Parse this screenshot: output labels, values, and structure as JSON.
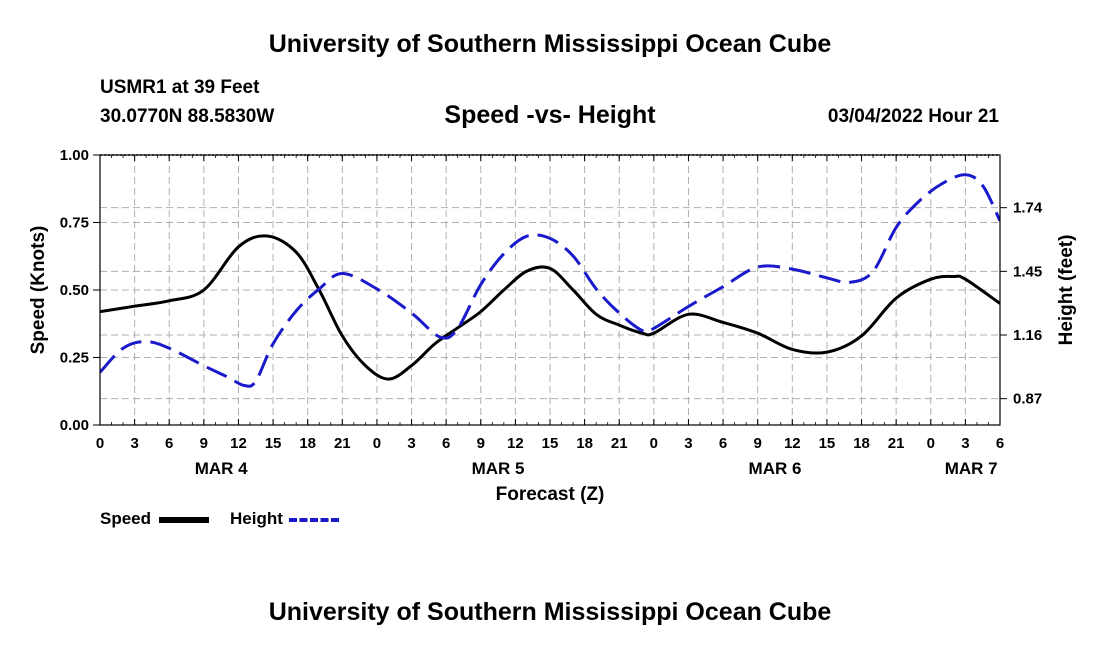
{
  "header": {
    "title": "University of Southern Mississippi Ocean Cube",
    "station": "USMR1 at 39 Feet",
    "coordinates": "30.0770N  88.5830W",
    "subtitle": "Speed -vs- Height",
    "datetime": "03/04/2022 Hour 21"
  },
  "footer": {
    "title": "University of Southern Mississippi Ocean Cube"
  },
  "legend": {
    "speed_label": "Speed",
    "height_label": "Height"
  },
  "colors": {
    "speed": "#000000",
    "height": "#1a1acc",
    "grid": "#b0b0b0"
  },
  "chart_data": {
    "type": "line",
    "title": "Speed -vs- Height",
    "xlabel": "Forecast (Z)",
    "ylabel": "Speed (Knots)",
    "y2label": "Height (feet)",
    "xlim": [
      0,
      78
    ],
    "ylim": [
      0,
      1.0
    ],
    "y2lim": [
      0.75,
      1.98
    ],
    "grid": true,
    "x_tick_values": [
      0,
      3,
      6,
      9,
      12,
      15,
      18,
      21,
      24,
      27,
      30,
      33,
      36,
      39,
      42,
      45,
      48,
      51,
      54,
      57,
      60,
      63,
      66,
      69,
      72,
      75,
      78
    ],
    "x_tick_labels": [
      "0",
      "3",
      "6",
      "9",
      "12",
      "15",
      "18",
      "21",
      "0",
      "3",
      "6",
      "9",
      "12",
      "15",
      "18",
      "21",
      "0",
      "3",
      "6",
      "9",
      "12",
      "15",
      "18",
      "21",
      "0",
      "3",
      "6"
    ],
    "y_ticks": [
      0.0,
      0.25,
      0.5,
      0.75,
      1.0
    ],
    "y_tick_labels": [
      "0.00",
      "0.25",
      "0.50",
      "0.75",
      "1.00"
    ],
    "y2_ticks": [
      0.87,
      1.16,
      1.45,
      1.74
    ],
    "y2_tick_labels": [
      "0.87",
      "1.16",
      "1.45",
      "1.74"
    ],
    "day_labels": [
      {
        "hour": 10.5,
        "label": "MAR 4"
      },
      {
        "hour": 34.5,
        "label": "MAR 5"
      },
      {
        "hour": 58.5,
        "label": "MAR 6"
      },
      {
        "hour": 75.5,
        "label": "MAR 7"
      }
    ],
    "series": [
      {
        "name": "Speed",
        "axis": "left",
        "style": "solid",
        "x": [
          0,
          3,
          6,
          9,
          12,
          14.5,
          17,
          19,
          21,
          23,
          25,
          27,
          29,
          31,
          33,
          35,
          37,
          39,
          41,
          43,
          45,
          47,
          48,
          51,
          54,
          57,
          60,
          63,
          66,
          69,
          72,
          74,
          75,
          78
        ],
        "values": [
          0.42,
          0.44,
          0.46,
          0.5,
          0.66,
          0.7,
          0.64,
          0.5,
          0.33,
          0.22,
          0.17,
          0.22,
          0.3,
          0.36,
          0.42,
          0.5,
          0.57,
          0.58,
          0.5,
          0.41,
          0.37,
          0.34,
          0.34,
          0.41,
          0.38,
          0.34,
          0.28,
          0.27,
          0.33,
          0.47,
          0.54,
          0.55,
          0.54,
          0.45
        ]
      },
      {
        "name": "Height",
        "axis": "right",
        "style": "dashed",
        "x": [
          0,
          2,
          4,
          6,
          9,
          11,
          12.5,
          13.5,
          15,
          17,
          19,
          21,
          24,
          27,
          29.5,
          31,
          33,
          35,
          37,
          39,
          41,
          43,
          45,
          47,
          48,
          51,
          54,
          57,
          60,
          63,
          65,
          67,
          69,
          71,
          73,
          75,
          76.5,
          78
        ],
        "values": [
          0.99,
          1.1,
          1.13,
          1.1,
          1.02,
          0.97,
          0.93,
          0.95,
          1.12,
          1.27,
          1.37,
          1.44,
          1.37,
          1.26,
          1.15,
          1.19,
          1.39,
          1.53,
          1.61,
          1.6,
          1.52,
          1.37,
          1.26,
          1.18,
          1.19,
          1.29,
          1.38,
          1.47,
          1.46,
          1.42,
          1.4,
          1.45,
          1.65,
          1.77,
          1.85,
          1.89,
          1.84,
          1.68
        ]
      }
    ]
  }
}
